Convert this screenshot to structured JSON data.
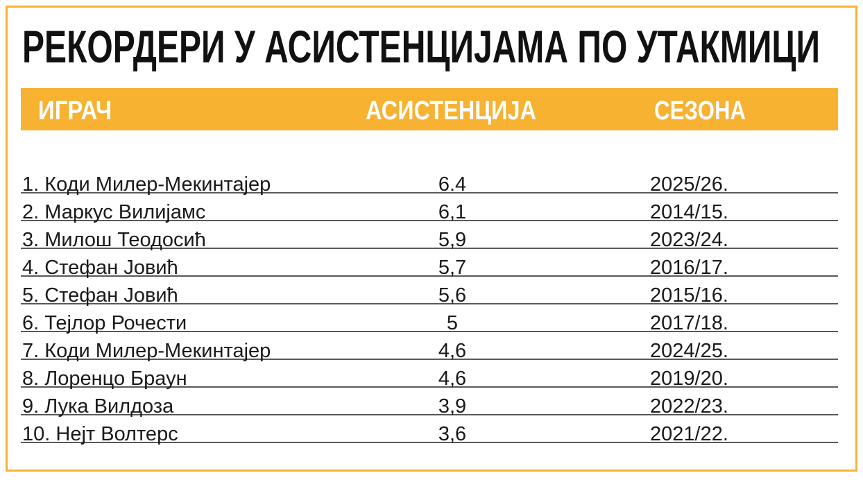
{
  "title": "РЕКОРДЕРИ У АСИСТЕНЦИЈАМА ПО УТАКМИЦИ",
  "table": {
    "header": [
      "ИГРАЧ",
      "АСИСТЕНЦИЈА",
      "СЕЗОНА"
    ],
    "rows": [
      [
        "1. Коди Милер-Мекинтајер",
        "6.4",
        "2025/26."
      ],
      [
        "2. Маркус Вилијамс",
        "6,1",
        "2014/15."
      ],
      [
        "3. Милош Теодосић",
        "5,9",
        "2023/24."
      ],
      [
        "4. Стефан Јовић",
        "5,7",
        "2016/17."
      ],
      [
        "5. Стефан Јовић",
        "5,6",
        "2015/16."
      ],
      [
        "6. Тејлор Рочести",
        "5",
        "2017/18."
      ],
      [
        "7. Коди Милер-Мекинтајер",
        "4,6",
        "2024/25."
      ],
      [
        "8. Лоренцо Браун",
        "4,6",
        "2019/20."
      ],
      [
        "9. Лука Вилдоза",
        "3,9",
        "2022/23."
      ],
      [
        "10. Нејт Волтерс",
        "3,6",
        "2021/22."
      ]
    ]
  }
}
